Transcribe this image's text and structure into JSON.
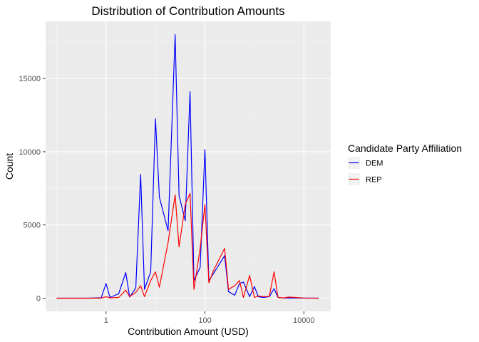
{
  "chart_data": {
    "type": "line",
    "title": "Distribution of Contribution Amounts",
    "xlabel": "Contribution Amount (USD)",
    "ylabel": "Count",
    "x_scale": "log10",
    "xlim": [
      0.06,
      35000
    ],
    "ylim": [
      -900,
      18900
    ],
    "x_ticks": [
      {
        "value": 1,
        "label": "1"
      },
      {
        "value": 100,
        "label": "100"
      },
      {
        "value": 10000,
        "label": "10000"
      }
    ],
    "y_ticks": [
      {
        "value": 0,
        "label": "0"
      },
      {
        "value": 5000,
        "label": "5000"
      },
      {
        "value": 10000,
        "label": "10000"
      },
      {
        "value": 15000,
        "label": "15000"
      }
    ],
    "grid": true,
    "legend": {
      "title": "Candidate Party Affiliation",
      "position": "right"
    },
    "series": [
      {
        "name": "DEM",
        "color": "#0000ff",
        "points": [
          [
            0.1,
            0
          ],
          [
            0.2,
            0
          ],
          [
            0.4,
            0
          ],
          [
            0.8,
            30
          ],
          [
            1,
            1000
          ],
          [
            1.2,
            50
          ],
          [
            1.8,
            300
          ],
          [
            2.5,
            1750
          ],
          [
            3,
            80
          ],
          [
            4,
            700
          ],
          [
            5,
            8450
          ],
          [
            6,
            600
          ],
          [
            8,
            1800
          ],
          [
            10,
            12250
          ],
          [
            12,
            6900
          ],
          [
            18,
            4600
          ],
          [
            25,
            18000
          ],
          [
            30,
            7000
          ],
          [
            40,
            5300
          ],
          [
            50,
            14100
          ],
          [
            60,
            1200
          ],
          [
            80,
            2100
          ],
          [
            100,
            10150
          ],
          [
            120,
            1200
          ],
          [
            150,
            1700
          ],
          [
            250,
            2900
          ],
          [
            300,
            450
          ],
          [
            400,
            200
          ],
          [
            500,
            1000
          ],
          [
            600,
            1100
          ],
          [
            800,
            100
          ],
          [
            1000,
            800
          ],
          [
            1200,
            100
          ],
          [
            1500,
            50
          ],
          [
            2000,
            100
          ],
          [
            2500,
            650
          ],
          [
            3000,
            50
          ],
          [
            4000,
            10
          ],
          [
            5000,
            20
          ],
          [
            10000,
            5
          ],
          [
            20000,
            0
          ]
        ]
      },
      {
        "name": "REP",
        "color": "#ff0000",
        "points": [
          [
            0.1,
            0
          ],
          [
            0.2,
            0
          ],
          [
            0.4,
            0
          ],
          [
            0.8,
            5
          ],
          [
            1,
            100
          ],
          [
            1.2,
            20
          ],
          [
            1.8,
            50
          ],
          [
            2.5,
            550
          ],
          [
            3,
            100
          ],
          [
            4,
            400
          ],
          [
            5,
            850
          ],
          [
            6,
            100
          ],
          [
            8,
            1200
          ],
          [
            10,
            1800
          ],
          [
            12,
            750
          ],
          [
            18,
            3800
          ],
          [
            25,
            7050
          ],
          [
            30,
            3500
          ],
          [
            40,
            6400
          ],
          [
            50,
            7150
          ],
          [
            60,
            600
          ],
          [
            80,
            3400
          ],
          [
            100,
            6400
          ],
          [
            120,
            1050
          ],
          [
            150,
            1900
          ],
          [
            250,
            3400
          ],
          [
            300,
            600
          ],
          [
            400,
            850
          ],
          [
            500,
            1200
          ],
          [
            600,
            50
          ],
          [
            800,
            1550
          ],
          [
            1000,
            50
          ],
          [
            1200,
            150
          ],
          [
            1500,
            100
          ],
          [
            2000,
            120
          ],
          [
            2500,
            1800
          ],
          [
            3000,
            50
          ],
          [
            4000,
            20
          ],
          [
            5000,
            80
          ],
          [
            10000,
            10
          ],
          [
            20000,
            0
          ]
        ]
      }
    ]
  }
}
